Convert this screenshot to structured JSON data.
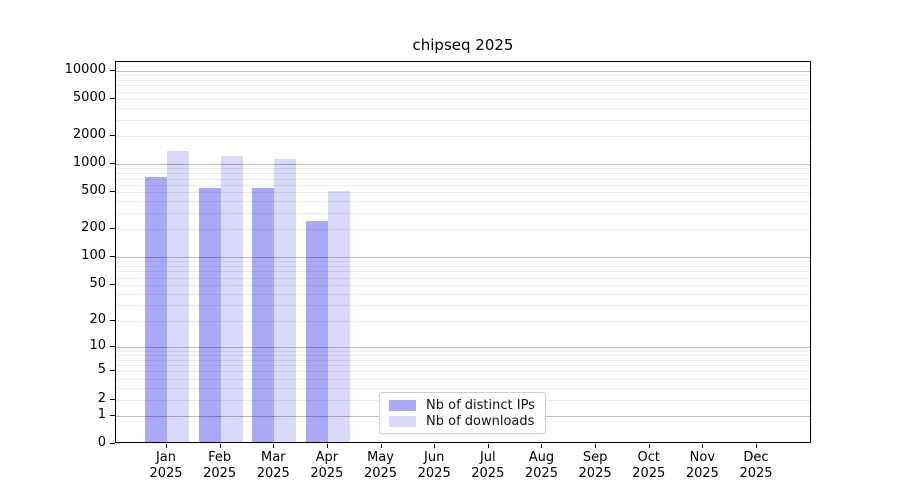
{
  "legend": {
    "items": [
      {
        "label": "Nb of distinct IPs",
        "color": "#a9a9f7"
      },
      {
        "label": "Nb of downloads",
        "color": "#d9d9f9"
      }
    ]
  },
  "chart_data": {
    "type": "bar",
    "title": "chipseq 2025",
    "x_labels": [
      {
        "month": "Jan",
        "year": "2025"
      },
      {
        "month": "Feb",
        "year": "2025"
      },
      {
        "month": "Mar",
        "year": "2025"
      },
      {
        "month": "Apr",
        "year": "2025"
      },
      {
        "month": "May",
        "year": "2025"
      },
      {
        "month": "Jun",
        "year": "2025"
      },
      {
        "month": "Jul",
        "year": "2025"
      },
      {
        "month": "Aug",
        "year": "2025"
      },
      {
        "month": "Sep",
        "year": "2025"
      },
      {
        "month": "Oct",
        "year": "2025"
      },
      {
        "month": "Nov",
        "year": "2025"
      },
      {
        "month": "Dec",
        "year": "2025"
      }
    ],
    "series": [
      {
        "name": "Nb of distinct IPs",
        "color": "#a9a9f7",
        "values": [
          700,
          530,
          530,
          235,
          null,
          null,
          null,
          null,
          null,
          null,
          null,
          null
        ]
      },
      {
        "name": "Nb of downloads",
        "color": "#d9d9f9",
        "values": [
          1320,
          1180,
          1070,
          490,
          null,
          null,
          null,
          null,
          null,
          null,
          null,
          null
        ]
      }
    ],
    "y_ticks": [
      10000,
      5000,
      2000,
      1000,
      500,
      200,
      100,
      50,
      20,
      10,
      5,
      2,
      1,
      0
    ],
    "ylim": [
      0,
      10000
    ],
    "y_scale": "log10(value+1)",
    "grid": {
      "major_at": [
        1,
        10,
        100,
        1000,
        10000
      ],
      "minor_at": "2..9 per decade"
    },
    "legend_position": "lower center"
  }
}
